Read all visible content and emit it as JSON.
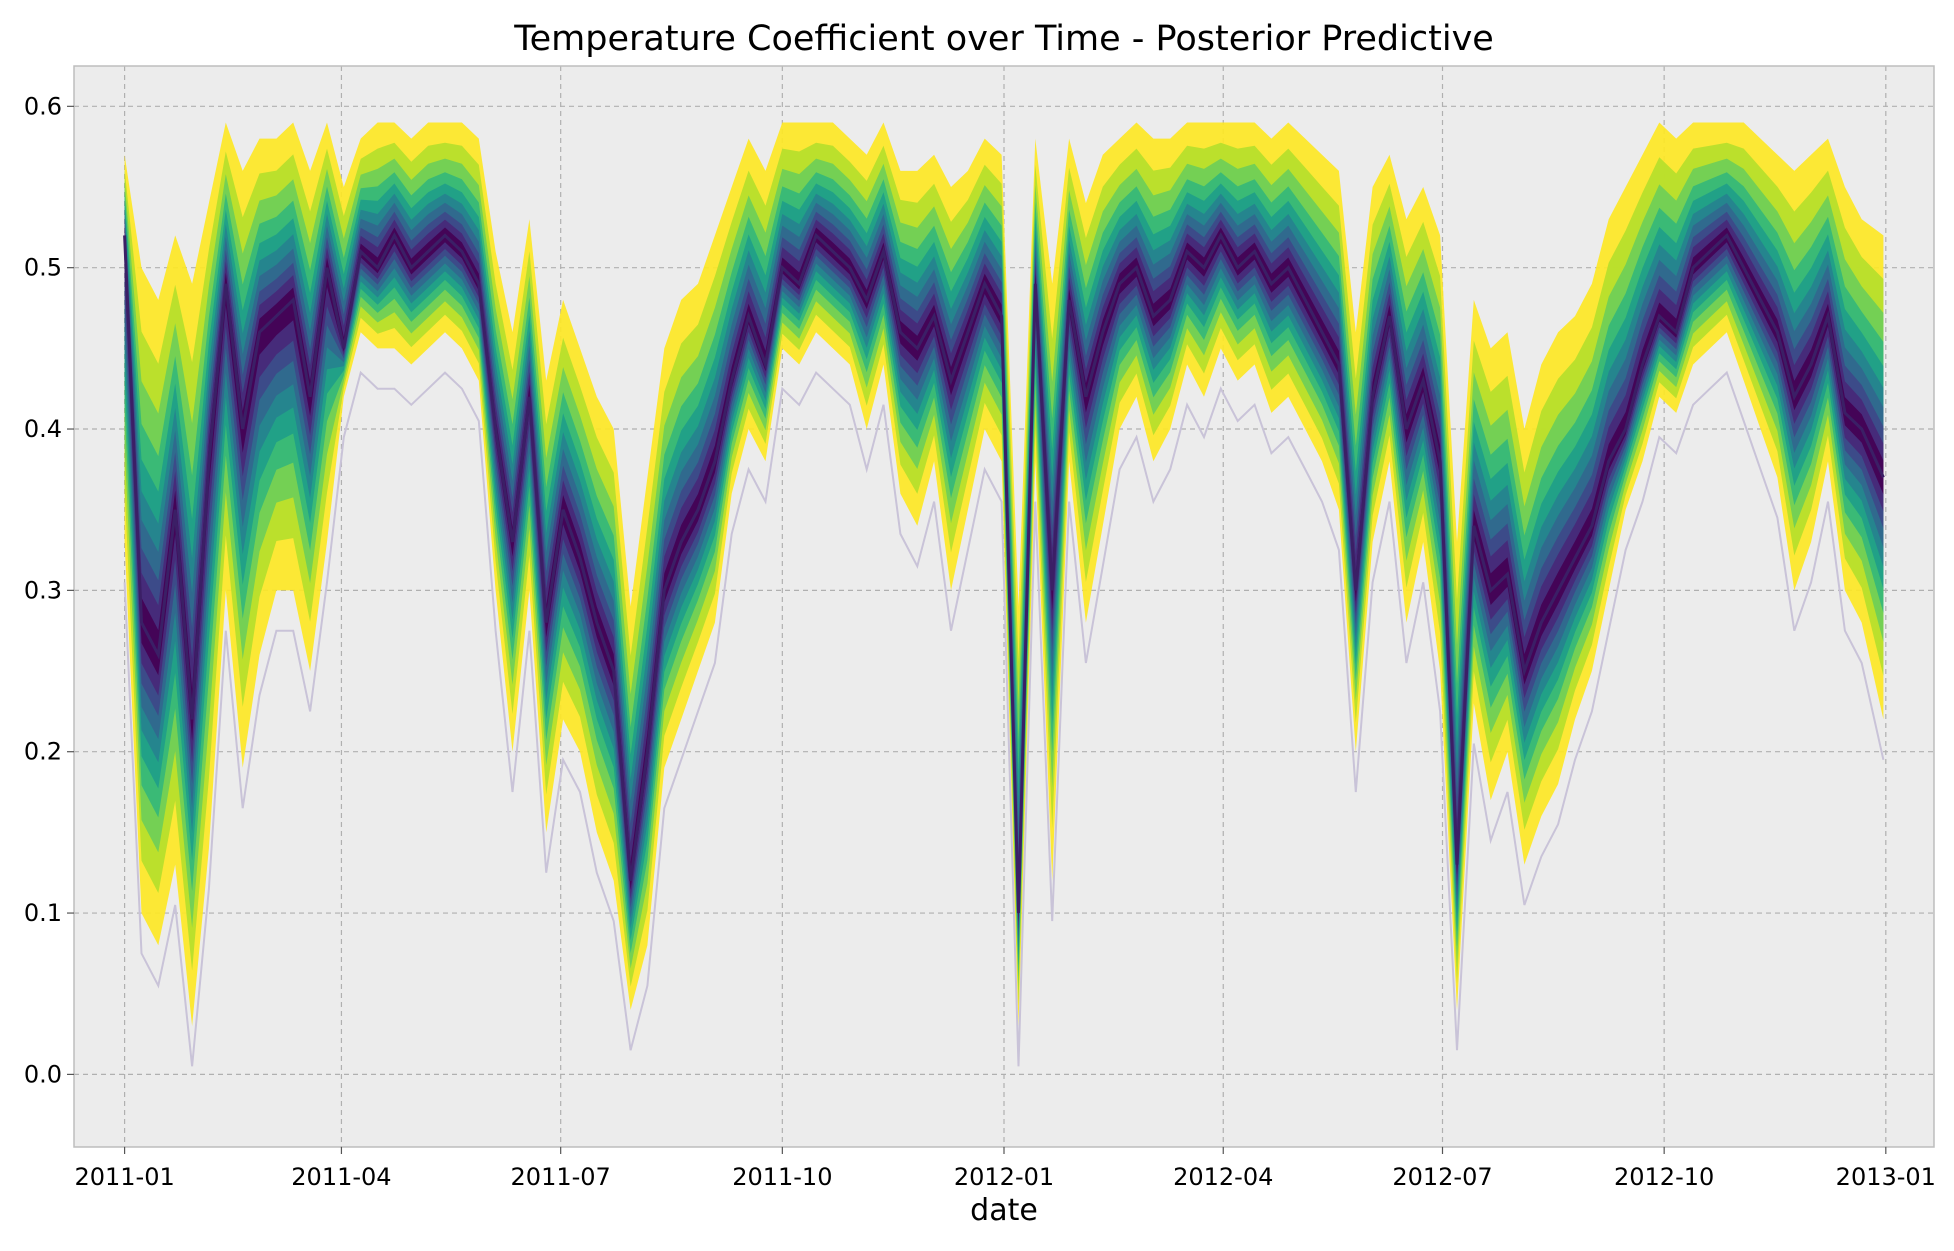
{
  "chart_data": {
    "type": "area",
    "title": "Temperature Coefficient over Time - Posterior Predictive",
    "xlabel": "date",
    "ylabel": "",
    "xlim": [
      "2010-12-11",
      "2013-01-21"
    ],
    "ylim": [
      -0.045,
      0.625
    ],
    "x_ticks": [
      "2011-01",
      "2011-04",
      "2011-07",
      "2011-10",
      "2012-01",
      "2012-04",
      "2012-07",
      "2012-10",
      "2013-01"
    ],
    "y_ticks": [
      "0.0",
      "0.1",
      "0.2",
      "0.3",
      "0.4",
      "0.5",
      "0.6"
    ],
    "grid": true,
    "legend": "none",
    "colormap": "viridis",
    "band_colors": [
      "#fde725",
      "#b5de2b",
      "#6ece58",
      "#35b779",
      "#1f9e89",
      "#26828e",
      "#31688e",
      "#3e4989",
      "#482878",
      "#440154"
    ],
    "band_halfwidth_fraction": [
      1.0,
      0.82,
      0.68,
      0.56,
      0.46,
      0.37,
      0.29,
      0.21,
      0.14,
      0.07
    ],
    "median_color": "#3b1f66",
    "sample_line_color": "#c9c3d8",
    "background_color": "#ececec",
    "series": [
      {
        "x": [
          "2011-01-01",
          "2011-01-08",
          "2011-01-15",
          "2011-01-22",
          "2011-01-29",
          "2011-02-05",
          "2011-02-12",
          "2011-02-19",
          "2011-02-26",
          "2011-03-05",
          "2011-03-12",
          "2011-03-19",
          "2011-03-26",
          "2011-04-02",
          "2011-04-09",
          "2011-04-16",
          "2011-04-23",
          "2011-04-30",
          "2011-05-07",
          "2011-05-14",
          "2011-05-21",
          "2011-05-28",
          "2011-06-04",
          "2011-06-11",
          "2011-06-18",
          "2011-06-25",
          "2011-07-02",
          "2011-07-09",
          "2011-07-16",
          "2011-07-23",
          "2011-07-30",
          "2011-08-06",
          "2011-08-13",
          "2011-08-20",
          "2011-08-27",
          "2011-09-03",
          "2011-09-10",
          "2011-09-17",
          "2011-09-24",
          "2011-10-01",
          "2011-10-08",
          "2011-10-15",
          "2011-10-22",
          "2011-10-29",
          "2011-11-05",
          "2011-11-12",
          "2011-11-19",
          "2011-11-26",
          "2011-12-03",
          "2011-12-10",
          "2011-12-17",
          "2011-12-24",
          "2011-12-31",
          "2012-01-07",
          "2012-01-14",
          "2012-01-21",
          "2012-01-28",
          "2012-02-04",
          "2012-02-11",
          "2012-02-18",
          "2012-02-25",
          "2012-03-03",
          "2012-03-10",
          "2012-03-17",
          "2012-03-24",
          "2012-03-31",
          "2012-04-07",
          "2012-04-14",
          "2012-04-21",
          "2012-04-28",
          "2012-05-05",
          "2012-05-12",
          "2012-05-19",
          "2012-05-26",
          "2012-06-02",
          "2012-06-09",
          "2012-06-16",
          "2012-06-23",
          "2012-06-30",
          "2012-07-07",
          "2012-07-14",
          "2012-07-21",
          "2012-07-28",
          "2012-08-04",
          "2012-08-11",
          "2012-08-18",
          "2012-08-25",
          "2012-09-01",
          "2012-09-08",
          "2012-09-15",
          "2012-09-22",
          "2012-09-29",
          "2012-10-06",
          "2012-10-13",
          "2012-10-20",
          "2012-10-27",
          "2012-11-03",
          "2012-11-10",
          "2012-11-17",
          "2012-11-24",
          "2012-12-01",
          "2012-12-08",
          "2012-12-15",
          "2012-12-22",
          "2012-12-31"
        ],
        "median": [
          0.52,
          0.28,
          0.26,
          0.35,
          0.22,
          0.38,
          0.49,
          0.4,
          0.46,
          0.47,
          0.48,
          0.42,
          0.5,
          0.45,
          0.51,
          0.5,
          0.52,
          0.5,
          0.51,
          0.52,
          0.51,
          0.49,
          0.4,
          0.33,
          0.42,
          0.28,
          0.35,
          0.32,
          0.28,
          0.25,
          0.12,
          0.2,
          0.3,
          0.33,
          0.35,
          0.38,
          0.43,
          0.47,
          0.44,
          0.5,
          0.49,
          0.52,
          0.51,
          0.5,
          0.48,
          0.51,
          0.46,
          0.45,
          0.47,
          0.43,
          0.46,
          0.49,
          0.47,
          0.1,
          0.49,
          0.3,
          0.48,
          0.42,
          0.46,
          0.49,
          0.5,
          0.47,
          0.48,
          0.51,
          0.5,
          0.52,
          0.5,
          0.51,
          0.49,
          0.5,
          0.48,
          0.46,
          0.44,
          0.3,
          0.42,
          0.47,
          0.4,
          0.43,
          0.38,
          0.13,
          0.34,
          0.3,
          0.31,
          0.25,
          0.28,
          0.3,
          0.32,
          0.34,
          0.38,
          0.4,
          0.44,
          0.47,
          0.46,
          0.5,
          0.51,
          0.52,
          0.5,
          0.48,
          0.46,
          0.42,
          0.44,
          0.47,
          0.41,
          0.4,
          0.37
        ],
        "hdi_low": [
          0.33,
          0.1,
          0.08,
          0.13,
          0.03,
          0.14,
          0.3,
          0.19,
          0.26,
          0.3,
          0.3,
          0.25,
          0.33,
          0.42,
          0.46,
          0.45,
          0.45,
          0.44,
          0.45,
          0.46,
          0.45,
          0.43,
          0.3,
          0.2,
          0.3,
          0.15,
          0.22,
          0.2,
          0.15,
          0.12,
          0.04,
          0.08,
          0.19,
          0.22,
          0.25,
          0.28,
          0.36,
          0.4,
          0.38,
          0.45,
          0.44,
          0.46,
          0.45,
          0.44,
          0.4,
          0.44,
          0.36,
          0.34,
          0.38,
          0.3,
          0.35,
          0.4,
          0.38,
          0.03,
          0.38,
          0.12,
          0.38,
          0.28,
          0.34,
          0.4,
          0.42,
          0.38,
          0.4,
          0.44,
          0.42,
          0.45,
          0.43,
          0.44,
          0.41,
          0.42,
          0.4,
          0.38,
          0.35,
          0.2,
          0.33,
          0.38,
          0.28,
          0.33,
          0.25,
          0.04,
          0.23,
          0.17,
          0.2,
          0.13,
          0.16,
          0.18,
          0.22,
          0.25,
          0.3,
          0.35,
          0.38,
          0.42,
          0.41,
          0.44,
          0.45,
          0.46,
          0.43,
          0.4,
          0.37,
          0.3,
          0.33,
          0.38,
          0.3,
          0.28,
          0.22
        ],
        "hdi_high": [
          0.57,
          0.5,
          0.48,
          0.52,
          0.49,
          0.54,
          0.59,
          0.56,
          0.58,
          0.58,
          0.59,
          0.56,
          0.59,
          0.55,
          0.58,
          0.59,
          0.59,
          0.58,
          0.59,
          0.59,
          0.59,
          0.58,
          0.51,
          0.46,
          0.53,
          0.43,
          0.48,
          0.45,
          0.42,
          0.4,
          0.29,
          0.37,
          0.45,
          0.48,
          0.49,
          0.52,
          0.55,
          0.58,
          0.56,
          0.59,
          0.59,
          0.59,
          0.59,
          0.58,
          0.57,
          0.59,
          0.56,
          0.56,
          0.57,
          0.55,
          0.56,
          0.58,
          0.57,
          0.29,
          0.58,
          0.49,
          0.58,
          0.54,
          0.57,
          0.58,
          0.59,
          0.58,
          0.58,
          0.59,
          0.59,
          0.59,
          0.59,
          0.59,
          0.58,
          0.59,
          0.58,
          0.57,
          0.56,
          0.46,
          0.55,
          0.57,
          0.53,
          0.55,
          0.52,
          0.33,
          0.48,
          0.45,
          0.46,
          0.4,
          0.44,
          0.46,
          0.47,
          0.49,
          0.53,
          0.55,
          0.57,
          0.59,
          0.58,
          0.59,
          0.59,
          0.59,
          0.59,
          0.58,
          0.57,
          0.56,
          0.57,
          0.58,
          0.55,
          0.53,
          0.52
        ]
      }
    ]
  }
}
